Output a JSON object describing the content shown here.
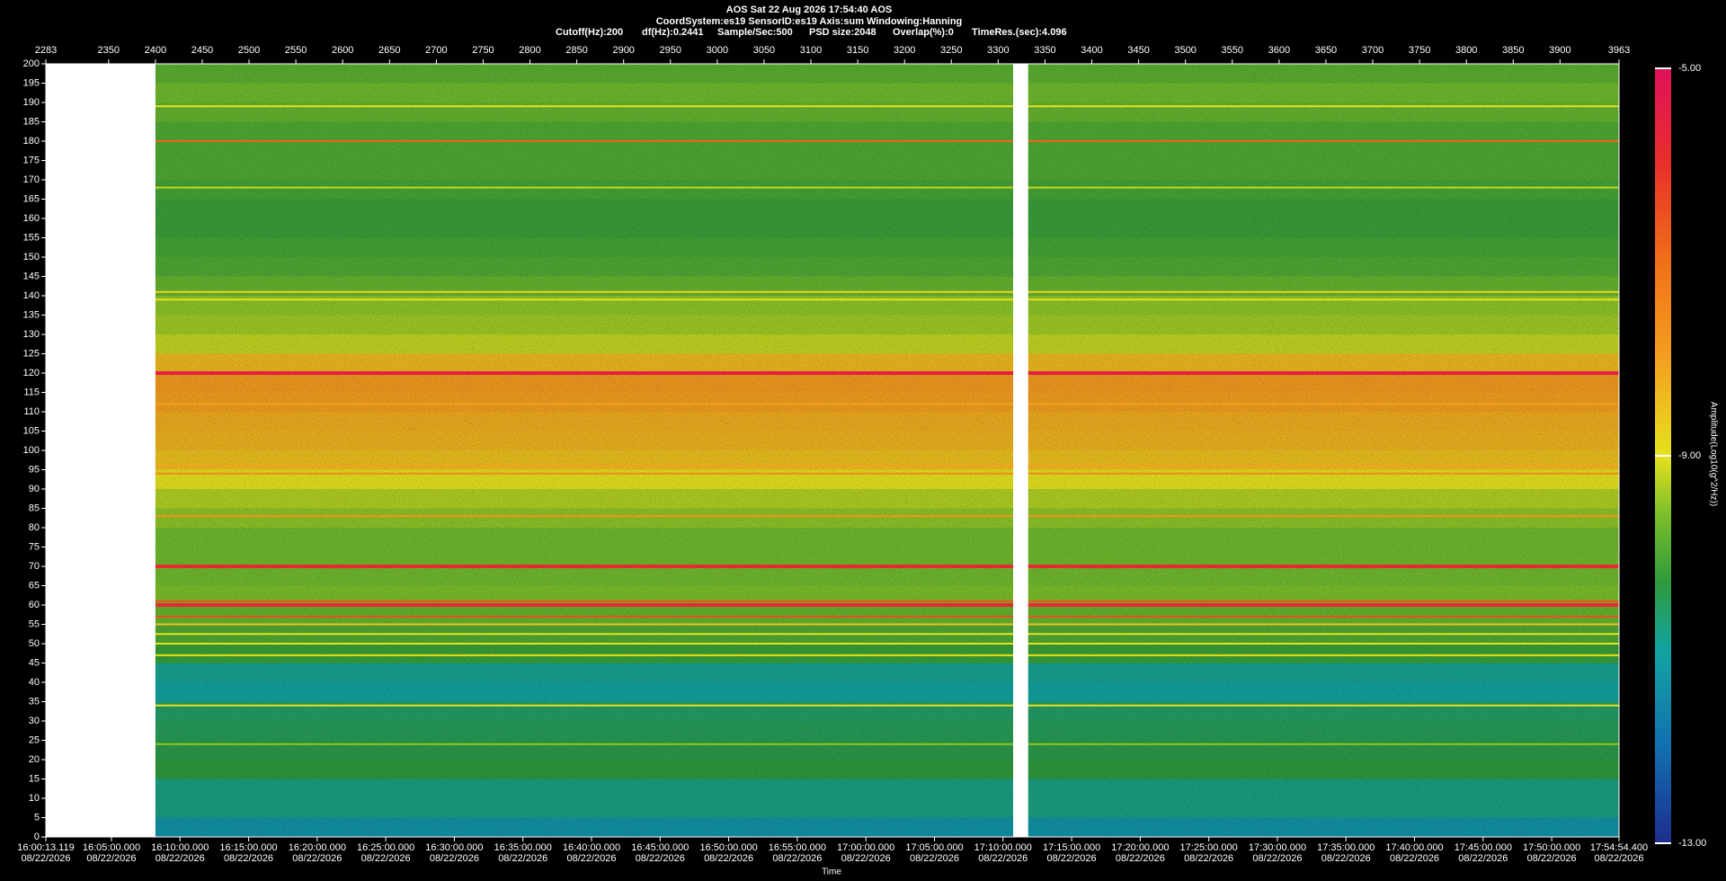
{
  "chart_data": {
    "type": "spectrogram",
    "title": "AOS  Sat 22 Aug 2026 17:54:40  AOS",
    "subtitle": "CoordSystem:es19   SensorID:es19   Axis:sum   Windowing:Hanning",
    "settings": [
      "Cutoff(Hz):200",
      "df(Hz):0.2441",
      "Sample/Sec:500",
      "PSD size:2048",
      "Overlap(%):0",
      "TimeRes.(sec):4.096"
    ],
    "x_label": "Time",
    "xlim": [
      2283,
      3963
    ],
    "xticks": [
      2283,
      2350,
      2400,
      2450,
      2500,
      2550,
      2600,
      2650,
      2700,
      2750,
      2800,
      2850,
      2900,
      2950,
      3000,
      3050,
      3100,
      3150,
      3200,
      3250,
      3300,
      3350,
      3400,
      3450,
      3500,
      3550,
      3600,
      3650,
      3700,
      3750,
      3800,
      3850,
      3900,
      3963
    ],
    "x2lim": [
      "16:00:13.119",
      "17:54:54.400"
    ],
    "x2ticks": [
      {
        "time": "16:00:13.119",
        "date": "08/22/2026"
      },
      {
        "time": "16:05:00.000",
        "date": "08/22/2026"
      },
      {
        "time": "16:10:00.000",
        "date": "08/22/2026"
      },
      {
        "time": "16:15:00.000",
        "date": "08/22/2026"
      },
      {
        "time": "16:20:00.000",
        "date": "08/22/2026"
      },
      {
        "time": "16:25:00.000",
        "date": "08/22/2026"
      },
      {
        "time": "16:30:00.000",
        "date": "08/22/2026"
      },
      {
        "time": "16:35:00.000",
        "date": "08/22/2026"
      },
      {
        "time": "16:40:00.000",
        "date": "08/22/2026"
      },
      {
        "time": "16:45:00.000",
        "date": "08/22/2026"
      },
      {
        "time": "16:50:00.000",
        "date": "08/22/2026"
      },
      {
        "time": "16:55:00.000",
        "date": "08/22/2026"
      },
      {
        "time": "17:00:00.000",
        "date": "08/22/2026"
      },
      {
        "time": "17:05:00.000",
        "date": "08/22/2026"
      },
      {
        "time": "17:10:00.000",
        "date": "08/22/2026"
      },
      {
        "time": "17:15:00.000",
        "date": "08/22/2026"
      },
      {
        "time": "17:20:00.000",
        "date": "08/22/2026"
      },
      {
        "time": "17:25:00.000",
        "date": "08/22/2026"
      },
      {
        "time": "17:30:00.000",
        "date": "08/22/2026"
      },
      {
        "time": "17:35:00.000",
        "date": "08/22/2026"
      },
      {
        "time": "17:40:00.000",
        "date": "08/22/2026"
      },
      {
        "time": "17:45:00.000",
        "date": "08/22/2026"
      },
      {
        "time": "17:50:00.000",
        "date": "08/22/2026"
      },
      {
        "time": "17:54:54.400",
        "date": "08/22/2026"
      }
    ],
    "ylim": [
      0,
      200
    ],
    "yticks": [
      0,
      5,
      10,
      15,
      20,
      25,
      30,
      35,
      40,
      45,
      50,
      55,
      60,
      65,
      70,
      75,
      80,
      85,
      90,
      95,
      100,
      105,
      110,
      115,
      120,
      125,
      130,
      135,
      140,
      145,
      150,
      155,
      160,
      165,
      170,
      175,
      180,
      185,
      190,
      195,
      200
    ],
    "bands": [
      0,
      5,
      10,
      15,
      20,
      25,
      30,
      35,
      40,
      45,
      50,
      55,
      60,
      65,
      70,
      75,
      80,
      85,
      90,
      95,
      100,
      105,
      110,
      115,
      120,
      125,
      130,
      135,
      140,
      145,
      150,
      155,
      160,
      165,
      170,
      175,
      180,
      185,
      190,
      195,
      200
    ],
    "values": [
      -11.3,
      -10.8,
      -10.8,
      -10.3,
      -10.4,
      -10.5,
      -10.6,
      -11,
      -10.9,
      -10.2,
      -10,
      -9.8,
      -9.6,
      -9.7,
      -9.7,
      -9.7,
      -9.5,
      -9.3,
      -9,
      -8.5,
      -8.3,
      -8.2,
      -8,
      -7.9,
      -8.4,
      -9.2,
      -9.4,
      -9.5,
      -9.8,
      -10,
      -10.1,
      -10.2,
      -10.2,
      -10.1,
      -10,
      -10,
      -10,
      -9.8,
      -9.7,
      -9.9
    ],
    "lines": {
      "frequencies": [
        120,
        70,
        60,
        61,
        57,
        180,
        55,
        52.5,
        50,
        47,
        34,
        24,
        83,
        94,
        96,
        112,
        139,
        141,
        168,
        189
      ],
      "values": [
        -5.5,
        -5.8,
        -5.8,
        -6.5,
        -6.5,
        -6.8,
        -8.5,
        -9,
        -9,
        -9,
        -9,
        -9.5,
        -7.8,
        -7.5,
        -8,
        -8,
        -9,
        -8.8,
        -9.2,
        -9
      ]
    },
    "gaps": [
      [
        2283,
        2400
      ],
      [
        3316,
        3332
      ]
    ],
    "colorbar": {
      "label": "Amplitude(Log10(g^2/Hz))",
      "lim": [
        -13,
        -5
      ],
      "ticks": [
        {
          "value": -5,
          "label": "-5.00"
        },
        {
          "value": -9,
          "label": "-9.00"
        },
        {
          "value": -13,
          "label": "-13.00"
        }
      ],
      "colormap": [
        {
          "value": -13,
          "color": "#1d2d8c"
        },
        {
          "value": -12,
          "color": "#1270b0"
        },
        {
          "value": -11,
          "color": "#12a3a0"
        },
        {
          "value": -10.3,
          "color": "#2f9a3c"
        },
        {
          "value": -9.6,
          "color": "#7cbf2a"
        },
        {
          "value": -9,
          "color": "#e6e21e"
        },
        {
          "value": -8,
          "color": "#f3a020"
        },
        {
          "value": -7,
          "color": "#f07018"
        },
        {
          "value": -6,
          "color": "#e8302a"
        },
        {
          "value": -5,
          "color": "#e0105a"
        }
      ]
    }
  }
}
